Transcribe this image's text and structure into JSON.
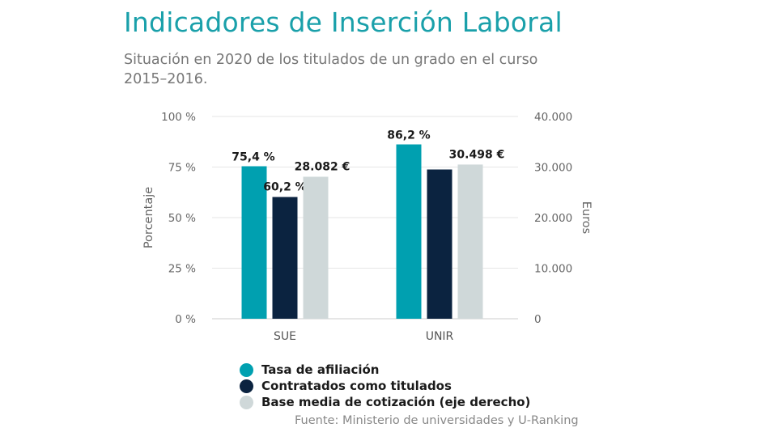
{
  "header": {
    "title": "Indicadores de Inserción Laboral",
    "subtitle": "Situación en 2020 de los titulados de un grado en el curso 2015–2016."
  },
  "source": "Fuente: Ministerio de universidades y U-Ranking",
  "chart_data": {
    "type": "bar",
    "categories": [
      "SUE",
      "UNIR"
    ],
    "series": [
      {
        "name": "Tasa de afiliación",
        "axis": "left",
        "values": [
          75.4,
          86.2
        ],
        "labels": [
          "75,4 %",
          "86,2 %"
        ],
        "color": "#00a0b0"
      },
      {
        "name": "Contratados como titulados",
        "axis": "left",
        "values": [
          60.2,
          73.8
        ],
        "labels": [
          "60,2 %",
          ""
        ],
        "color": "#0b2340"
      },
      {
        "name": "Base media de cotización (eje derecho)",
        "axis": "right",
        "values": [
          28082,
          30498
        ],
        "labels": [
          "28.082 €",
          "30.498 €"
        ],
        "color": "#cfd8d9"
      }
    ],
    "y_left": {
      "label": "Porcentaje",
      "range": [
        0,
        100
      ],
      "ticks": [
        "0 %",
        "25 %",
        "50 %",
        "75 %",
        "100 %"
      ]
    },
    "y_right": {
      "label": "Euros",
      "range": [
        0,
        40000
      ],
      "ticks": [
        "0",
        "10.000",
        "20.000",
        "30.000",
        "40.000"
      ]
    },
    "grid": true,
    "legend_position": "bottom"
  }
}
